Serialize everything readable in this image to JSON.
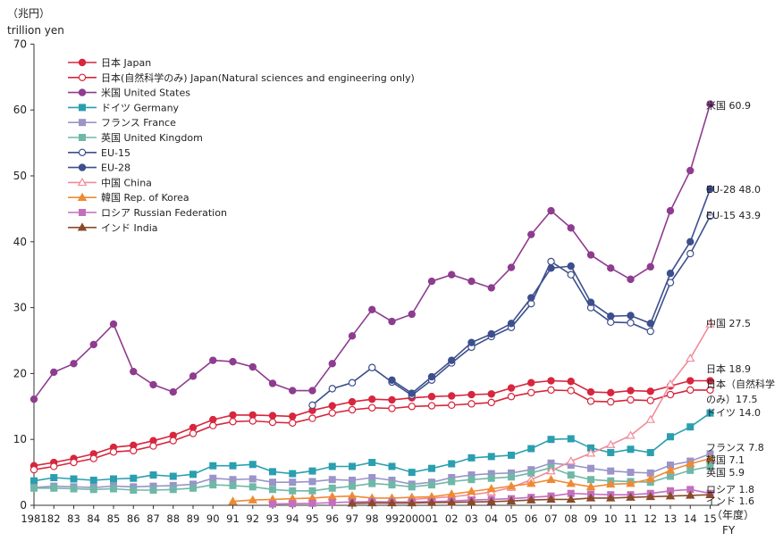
{
  "chart_data": {
    "type": "line",
    "unit_ja": "（兆円）",
    "unit_en": "trillion yen",
    "x_axis_ja": "（年度）",
    "x_axis_en": "FY",
    "ylim": [
      0,
      70
    ],
    "y_ticks": [
      0,
      10,
      20,
      30,
      40,
      50,
      60,
      70
    ],
    "grid": false,
    "legend_position": "top-left",
    "x_labels": [
      "1981",
      "82",
      "83",
      "84",
      "85",
      "86",
      "87",
      "88",
      "89",
      "90",
      "91",
      "92",
      "93",
      "94",
      "95",
      "96",
      "97",
      "98",
      "99",
      "2000",
      "01",
      "02",
      "03",
      "04",
      "05",
      "06",
      "07",
      "08",
      "09",
      "10",
      "11",
      "12",
      "13",
      "14",
      "15"
    ],
    "series": [
      {
        "name": "日本 Japan",
        "color": "#d7263d",
        "marker": "circle",
        "filled": true,
        "start": 0,
        "values": [
          6.0,
          6.5,
          7.1,
          7.8,
          8.8,
          9.1,
          9.8,
          10.6,
          11.8,
          13.0,
          13.7,
          13.7,
          13.6,
          13.5,
          14.4,
          15.1,
          15.7,
          16.1,
          16.0,
          16.3,
          16.5,
          16.6,
          16.8,
          16.9,
          17.8,
          18.6,
          18.9,
          18.8,
          17.2,
          17.1,
          17.4,
          17.3,
          18.1,
          18.9,
          18.9
        ],
        "end_label": "日本 18.9"
      },
      {
        "name": "日本(自然科学のみ) Japan(Natural sciences and engineering only)",
        "color": "#d7263d",
        "marker": "circle",
        "filled": false,
        "start": 0,
        "values": [
          5.4,
          5.9,
          6.5,
          7.1,
          8.1,
          8.3,
          9.0,
          9.8,
          10.9,
          12.1,
          12.7,
          12.8,
          12.6,
          12.5,
          13.2,
          14.0,
          14.5,
          14.8,
          14.7,
          15.0,
          15.1,
          15.2,
          15.4,
          15.6,
          16.5,
          17.1,
          17.5,
          17.4,
          15.8,
          15.7,
          16.0,
          15.9,
          16.8,
          17.5,
          17.5
        ],
        "end_label_1": "日本（自然科学",
        "end_label_2": "のみ）17.5"
      },
      {
        "name": "米国 United States",
        "color": "#8e3c8f",
        "marker": "circle",
        "filled": true,
        "start": 0,
        "values": [
          16.1,
          20.2,
          21.5,
          24.4,
          27.5,
          20.3,
          18.3,
          17.2,
          19.6,
          22.0,
          21.8,
          21.0,
          18.5,
          17.4,
          17.4,
          21.5,
          25.7,
          29.7,
          27.9,
          29.0,
          34.0,
          35.0,
          34.0,
          33.0,
          36.1,
          41.1,
          44.7,
          42.1,
          38.0,
          36.0,
          34.3,
          36.2,
          44.7,
          50.8,
          60.9
        ],
        "end_label": "米国 60.9"
      },
      {
        "name": "ドイツ Germany",
        "color": "#2a9fb0",
        "marker": "square",
        "filled": true,
        "start": 0,
        "values": [
          3.7,
          4.2,
          4.0,
          3.8,
          4.0,
          4.1,
          4.6,
          4.4,
          4.7,
          6.0,
          6.0,
          6.2,
          5.1,
          4.8,
          5.2,
          5.9,
          5.9,
          6.5,
          5.9,
          5.0,
          5.6,
          6.3,
          7.2,
          7.4,
          7.6,
          8.6,
          10.0,
          10.1,
          8.7,
          8.0,
          8.5,
          8.0,
          10.4,
          11.9,
          14.0
        ],
        "end_label": "ドイツ 14.0"
      },
      {
        "name": "フランス France",
        "color": "#9a94c9",
        "marker": "square",
        "filled": true,
        "start": 0,
        "values": [
          2.7,
          2.9,
          2.8,
          2.7,
          2.9,
          2.8,
          2.9,
          3.0,
          3.2,
          4.1,
          3.9,
          4.0,
          3.5,
          3.5,
          3.6,
          3.9,
          3.8,
          4.2,
          3.8,
          3.2,
          3.5,
          4.2,
          4.6,
          4.8,
          4.9,
          5.4,
          6.4,
          6.1,
          5.6,
          5.2,
          5.0,
          4.9,
          6.1,
          6.7,
          7.8
        ],
        "end_label": "フランス 7.8"
      },
      {
        "name": "英国 United Kingdom",
        "color": "#6fb8a8",
        "marker": "square",
        "filled": true,
        "start": 0,
        "values": [
          2.6,
          2.6,
          2.5,
          2.4,
          2.5,
          2.3,
          2.3,
          2.4,
          2.6,
          3.1,
          3.0,
          2.8,
          2.4,
          2.2,
          2.2,
          2.6,
          2.9,
          3.3,
          3.1,
          2.8,
          3.1,
          3.6,
          3.9,
          4.1,
          4.3,
          4.9,
          5.7,
          4.6,
          3.9,
          3.7,
          3.6,
          3.5,
          4.4,
          5.3,
          5.9
        ],
        "end_label": "英国 5.9"
      },
      {
        "name": "EU-15",
        "color": "#3d4f8c",
        "marker": "circle",
        "filled": false,
        "start": 14,
        "values": [
          15.2,
          17.7,
          18.6,
          20.9,
          18.7,
          16.7,
          19.0,
          21.6,
          24.0,
          25.6,
          27.0,
          30.6,
          37.0,
          35.0,
          30.0,
          27.8,
          27.7,
          26.4,
          33.8,
          38.2,
          43.9
        ],
        "end_label": "EU-15 43.9"
      },
      {
        "name": "EU-28",
        "color": "#3d4f8c",
        "marker": "circle",
        "filled": true,
        "start": 18,
        "values": [
          19.0,
          17.0,
          19.5,
          22.0,
          24.7,
          26.0,
          27.6,
          31.5,
          36.0,
          36.3,
          30.8,
          28.7,
          28.8,
          27.6,
          35.2,
          40.0,
          48.0
        ],
        "end_label": "EU-28 48.0"
      },
      {
        "name": "中国 China",
        "color": "#f28b9a",
        "marker": "triangle",
        "filled": false,
        "start": 19,
        "values": [
          0.9,
          1.1,
          1.3,
          1.6,
          2.0,
          2.7,
          3.9,
          5.2,
          6.7,
          7.9,
          9.2,
          10.6,
          13.0,
          18.4,
          22.3,
          27.5
        ],
        "end_label": "中国 27.5"
      },
      {
        "name": "韓国 Rep. of Korea",
        "color": "#ef8a34",
        "marker": "triangle",
        "filled": true,
        "start": 10,
        "values": [
          0.6,
          0.8,
          0.9,
          1.0,
          1.1,
          1.3,
          1.4,
          1.1,
          1.1,
          1.2,
          1.3,
          1.7,
          2.1,
          2.5,
          2.9,
          3.3,
          3.9,
          3.3,
          2.8,
          3.2,
          3.3,
          4.0,
          5.3,
          6.3,
          7.1
        ],
        "end_label": "韓国 7.1"
      },
      {
        "name": "ロシア Russian Federation",
        "color": "#c36fbf",
        "marker": "square",
        "filled": true,
        "start": 12,
        "values": [
          0.2,
          0.25,
          0.3,
          0.4,
          0.5,
          0.55,
          0.5,
          0.5,
          0.55,
          0.65,
          0.8,
          0.9,
          1.0,
          1.2,
          1.4,
          1.8,
          1.7,
          1.6,
          1.6,
          1.8,
          2.2,
          2.4,
          1.8
        ],
        "end_label": "ロシア 1.8"
      },
      {
        "name": "インド India",
        "color": "#8a4a2b",
        "marker": "triangle",
        "filled": true,
        "start": 16,
        "values": [
          0.3,
          0.35,
          0.35,
          0.35,
          0.4,
          0.45,
          0.5,
          0.55,
          0.65,
          0.8,
          0.9,
          0.9,
          1.1,
          1.1,
          1.2,
          1.3,
          1.4,
          1.5,
          1.6
        ],
        "end_label": "インド 1.6"
      }
    ]
  }
}
